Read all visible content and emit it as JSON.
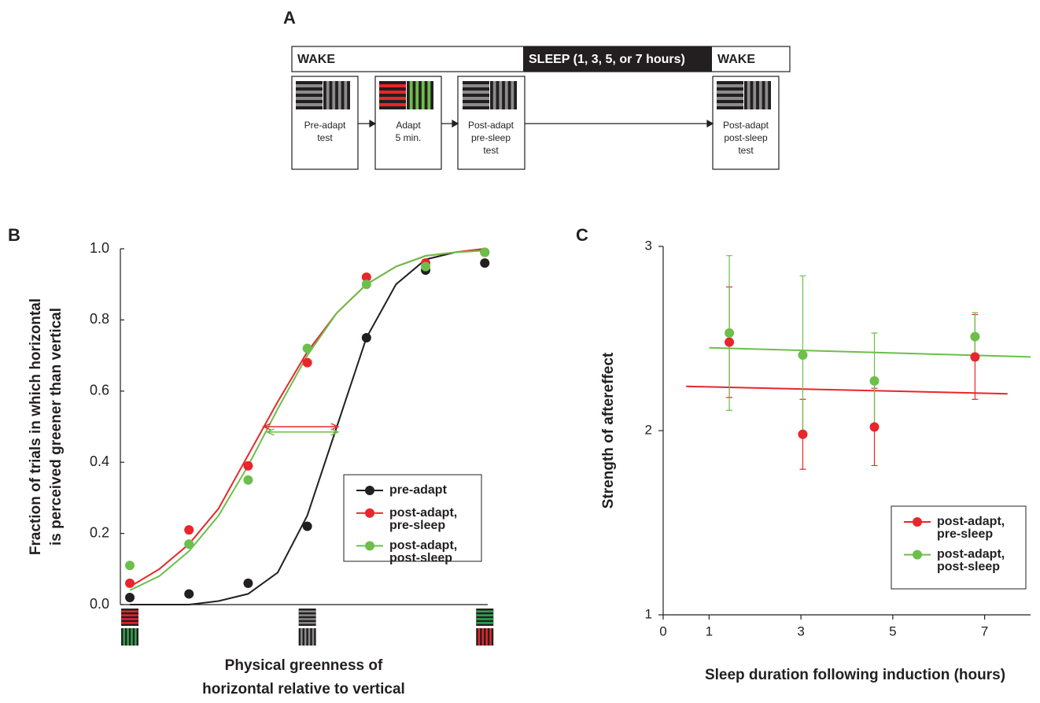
{
  "panel_a": {
    "label": "A",
    "timeline": [
      "WAKE",
      "SLEEP (1, 3, 5, or 7 hours)",
      "WAKE"
    ],
    "boxes": [
      [
        "Pre-adapt",
        "test"
      ],
      [
        "Adapt",
        "5 min."
      ],
      [
        "Post-adapt",
        "pre-sleep",
        "test"
      ],
      [
        "Post-adapt",
        "post-sleep",
        "test"
      ]
    ]
  },
  "chart_data": [
    {
      "label": "B",
      "type": "scatter",
      "ylabel": [
        "Fraction of trials in which horizontal",
        "is perceived greener than vertical"
      ],
      "xlabel": [
        "Physical greenness of",
        "horizontal relative to vertical"
      ],
      "x": [
        0,
        1,
        2,
        3,
        4,
        5,
        6
      ],
      "xlim": [
        -0.16,
        6.05
      ],
      "ylim": [
        0,
        1
      ],
      "yticks": [
        {
          "value": 0,
          "label": "0.0"
        },
        {
          "value": 0.2,
          "label": "0.2"
        },
        {
          "value": 0.4,
          "label": "0.4"
        },
        {
          "value": 0.6,
          "label": "0.6"
        },
        {
          "value": 0.8,
          "label": "0.8"
        },
        {
          "value": 1,
          "label": "1.0"
        }
      ],
      "fit_x": [
        0,
        0.5,
        1,
        1.5,
        2,
        2.5,
        3,
        3.5,
        4,
        4.5,
        5,
        5.5,
        6
      ],
      "series": [
        {
          "name": "pre-adapt",
          "color": "#231f20",
          "values": [
            0.02,
            0.03,
            0.06,
            0.22,
            0.75,
            0.94,
            0.96
          ],
          "fit": [
            0,
            0,
            0,
            0.01,
            0.03,
            0.09,
            0.25,
            0.5,
            0.75,
            0.9,
            0.97,
            0.99,
            1
          ]
        },
        {
          "name": "post-adapt, pre-sleep",
          "color": "#e8262b",
          "values": [
            0.06,
            0.21,
            0.39,
            0.68,
            0.92,
            0.96,
            0.99
          ],
          "fit": [
            0.05,
            0.1,
            0.17,
            0.27,
            0.42,
            0.57,
            0.71,
            0.82,
            0.9,
            0.95,
            0.98,
            0.99,
            1
          ]
        },
        {
          "name": "post-adapt, post-sleep",
          "color": "#6cbf4a",
          "values": [
            0.11,
            0.17,
            0.35,
            0.72,
            0.9,
            0.95,
            0.99
          ],
          "fit": [
            0.04,
            0.08,
            0.15,
            0.25,
            0.39,
            0.55,
            0.7,
            0.82,
            0.9,
            0.95,
            0.98,
            0.99,
            0.995
          ]
        }
      ],
      "arrows": [
        {
          "color": "#e8262b",
          "y": 0.5,
          "x": [
            2.26,
            3.52
          ]
        },
        {
          "color": "#6cbf4a",
          "y": 0.485,
          "x": [
            2.32,
            3.52
          ]
        }
      ],
      "legend": "lower right"
    },
    {
      "label": "C",
      "type": "scatter",
      "xlabel": "Sleep duration following induction (hours)",
      "ylabel": "Strength of aftereffect",
      "xlim": [
        0,
        8
      ],
      "ylim": [
        1,
        3
      ],
      "xticks": [
        0,
        1,
        3,
        5,
        7
      ],
      "yticks": [
        1,
        2,
        3
      ],
      "series": [
        {
          "name": "post-adapt, pre-sleep",
          "color": "#e8262b",
          "x": [
            1.44,
            3.04,
            4.6,
            6.79
          ],
          "values": [
            2.48,
            1.98,
            2.02,
            2.4
          ],
          "errors": [
            0.3,
            0.19,
            0.21,
            0.23
          ],
          "fit": {
            "x": [
              0.5,
              7.5
            ],
            "values": [
              2.24,
              2.2
            ]
          }
        },
        {
          "name": "post-adapt, post-sleep",
          "color": "#6cbf4a",
          "x": [
            1.44,
            3.04,
            4.6,
            6.79
          ],
          "values": [
            2.53,
            2.41,
            2.27,
            2.51
          ],
          "errors": [
            0.42,
            0.43,
            0.26,
            0.13
          ],
          "fit": {
            "x": [
              1,
              8
            ],
            "values": [
              2.45,
              2.4
            ]
          }
        }
      ],
      "legend": "lower right"
    }
  ]
}
